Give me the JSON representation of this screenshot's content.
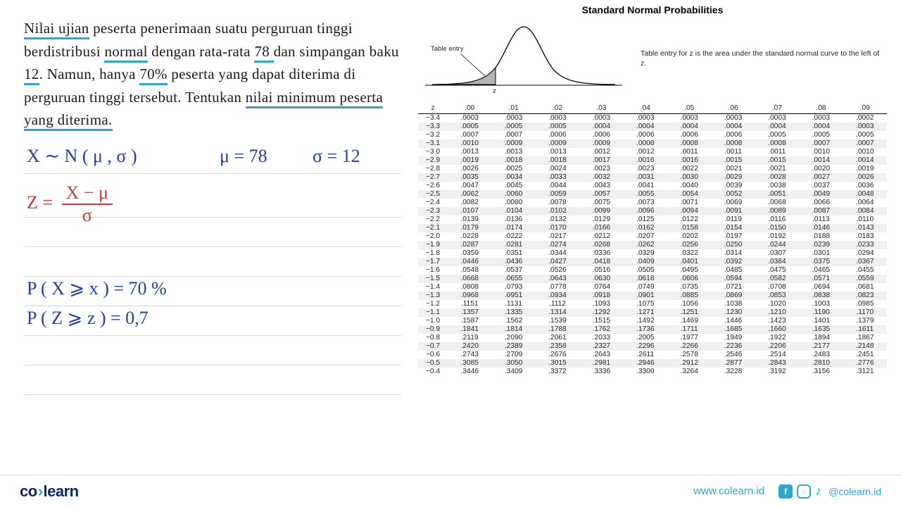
{
  "problem": {
    "text_parts": [
      "Nilai ujian",
      " peserta penerimaan suatu perguruan tinggi berdistribusi ",
      "normal",
      " dengan rata-rata ",
      "78 ",
      "dan simpangan baku ",
      "12",
      ". Namun, hanya ",
      "70%",
      " peserta yang dapat diterima di perguruan tinggi tersebut. Tentukan ",
      "nilai minimum peserta yang diterima."
    ],
    "underline_flags": [
      true,
      false,
      true,
      false,
      true,
      false,
      true,
      false,
      true,
      false,
      true
    ],
    "underline_color": "#2aa8c9",
    "font_size": 21
  },
  "handwriting": {
    "color_main": "#1f3fa6",
    "color_accent": "#c93a3a",
    "lines": {
      "dist": "X ∼ N ( μ , σ )",
      "mu": "μ = 78",
      "sigma": "σ = 12",
      "z_eq": "Z  =",
      "frac_num": "X − μ",
      "frac_den": "σ",
      "p1": "P ( X ⩾ x )  =  70 %",
      "p2": "P ( Z ⩾ z )  =  0,7"
    }
  },
  "chart": {
    "title": "Standard Normal Probabilities",
    "label_left": "Table entry",
    "label_bottom": "z",
    "note": "Table entry for z is the area under the standard normal curve to the left of z.",
    "curve_stroke": "#000000",
    "fill": "#b5b5b5"
  },
  "ztable": {
    "headers": [
      "z",
      ".00",
      ".01",
      ".02",
      ".03",
      ".04",
      ".05",
      ".06",
      ".07",
      ".08",
      ".09"
    ],
    "rows": [
      [
        "−3.4",
        ".0003",
        ".0003",
        ".0003",
        ".0003",
        ".0003",
        ".0003",
        ".0003",
        ".0003",
        ".0003",
        ".0002"
      ],
      [
        "−3.3",
        ".0005",
        ".0005",
        ".0005",
        ".0004",
        ".0004",
        ".0004",
        ".0004",
        ".0004",
        ".0004",
        ".0003"
      ],
      [
        "−3.2",
        ".0007",
        ".0007",
        ".0006",
        ".0006",
        ".0006",
        ".0006",
        ".0006",
        ".0005",
        ".0005",
        ".0005"
      ],
      [
        "−3.1",
        ".0010",
        ".0009",
        ".0009",
        ".0009",
        ".0008",
        ".0008",
        ".0008",
        ".0008",
        ".0007",
        ".0007"
      ],
      [
        "−3.0",
        ".0013",
        ".0013",
        ".0013",
        ".0012",
        ".0012",
        ".0011",
        ".0011",
        ".0011",
        ".0010",
        ".0010"
      ],
      [
        "−2.9",
        ".0019",
        ".0018",
        ".0018",
        ".0017",
        ".0016",
        ".0016",
        ".0015",
        ".0015",
        ".0014",
        ".0014"
      ],
      [
        "−2.8",
        ".0026",
        ".0025",
        ".0024",
        ".0023",
        ".0023",
        ".0022",
        ".0021",
        ".0021",
        ".0020",
        ".0019"
      ],
      [
        "−2.7",
        ".0035",
        ".0034",
        ".0033",
        ".0032",
        ".0031",
        ".0030",
        ".0029",
        ".0028",
        ".0027",
        ".0026"
      ],
      [
        "−2.6",
        ".0047",
        ".0045",
        ".0044",
        ".0043",
        ".0041",
        ".0040",
        ".0039",
        ".0038",
        ".0037",
        ".0036"
      ],
      [
        "−2.5",
        ".0062",
        ".0060",
        ".0059",
        ".0057",
        ".0055",
        ".0054",
        ".0052",
        ".0051",
        ".0049",
        ".0048"
      ],
      [
        "−2.4",
        ".0082",
        ".0080",
        ".0078",
        ".0075",
        ".0073",
        ".0071",
        ".0069",
        ".0068",
        ".0066",
        ".0064"
      ],
      [
        "−2.3",
        ".0107",
        ".0104",
        ".0102",
        ".0099",
        ".0096",
        ".0094",
        ".0091",
        ".0089",
        ".0087",
        ".0084"
      ],
      [
        "−2.2",
        ".0139",
        ".0136",
        ".0132",
        ".0129",
        ".0125",
        ".0122",
        ".0119",
        ".0116",
        ".0113",
        ".0110"
      ],
      [
        "−2.1",
        ".0179",
        ".0174",
        ".0170",
        ".0166",
        ".0162",
        ".0158",
        ".0154",
        ".0150",
        ".0146",
        ".0143"
      ],
      [
        "−2.0",
        ".0228",
        ".0222",
        ".0217",
        ".0212",
        ".0207",
        ".0202",
        ".0197",
        ".0192",
        ".0188",
        ".0183"
      ],
      [
        "−1.9",
        ".0287",
        ".0281",
        ".0274",
        ".0268",
        ".0262",
        ".0256",
        ".0250",
        ".0244",
        ".0239",
        ".0233"
      ],
      [
        "−1.8",
        ".0359",
        ".0351",
        ".0344",
        ".0336",
        ".0329",
        ".0322",
        ".0314",
        ".0307",
        ".0301",
        ".0294"
      ],
      [
        "−1.7",
        ".0446",
        ".0436",
        ".0427",
        ".0418",
        ".0409",
        ".0401",
        ".0392",
        ".0384",
        ".0375",
        ".0367"
      ],
      [
        "−1.6",
        ".0548",
        ".0537",
        ".0526",
        ".0516",
        ".0505",
        ".0495",
        ".0485",
        ".0475",
        ".0465",
        ".0455"
      ],
      [
        "−1.5",
        ".0668",
        ".0655",
        ".0643",
        ".0630",
        ".0618",
        ".0606",
        ".0594",
        ".0582",
        ".0571",
        ".0559"
      ],
      [
        "−1.4",
        ".0808",
        ".0793",
        ".0778",
        ".0764",
        ".0749",
        ".0735",
        ".0721",
        ".0708",
        ".0694",
        ".0681"
      ],
      [
        "−1.3",
        ".0968",
        ".0951",
        ".0934",
        ".0918",
        ".0901",
        ".0885",
        ".0869",
        ".0853",
        ".0838",
        ".0823"
      ],
      [
        "−1.2",
        ".1151",
        ".1131",
        ".1112",
        ".1093",
        ".1075",
        ".1056",
        ".1038",
        ".1020",
        ".1003",
        ".0985"
      ],
      [
        "−1.1",
        ".1357",
        ".1335",
        ".1314",
        ".1292",
        ".1271",
        ".1251",
        ".1230",
        ".1210",
        ".1190",
        ".1170"
      ],
      [
        "−1.0",
        ".1587",
        ".1562",
        ".1539",
        ".1515",
        ".1492",
        ".1469",
        ".1446",
        ".1423",
        ".1401",
        ".1379"
      ],
      [
        "−0.9",
        ".1841",
        ".1814",
        ".1788",
        ".1762",
        ".1736",
        ".1711",
        ".1685",
        ".1660",
        ".1635",
        ".1611"
      ],
      [
        "−0.8",
        ".2119",
        ".2090",
        ".2061",
        ".2033",
        ".2005",
        ".1977",
        ".1949",
        ".1922",
        ".1894",
        ".1867"
      ],
      [
        "−0.7",
        ".2420",
        ".2389",
        ".2358",
        ".2327",
        ".2296",
        ".2266",
        ".2236",
        ".2206",
        ".2177",
        ".2148"
      ],
      [
        "−0.6",
        ".2743",
        ".2709",
        ".2676",
        ".2643",
        ".2611",
        ".2578",
        ".2546",
        ".2514",
        ".2483",
        ".2451"
      ],
      [
        "−0.5",
        ".3085",
        ".3050",
        ".3015",
        ".2981",
        ".2946",
        ".2912",
        ".2877",
        ".2843",
        ".2810",
        ".2776"
      ],
      [
        "−0.4",
        ".3446",
        ".3409",
        ".3372",
        ".3336",
        ".3300",
        ".3264",
        ".3228",
        ".3192",
        ".3156",
        ".3121"
      ]
    ],
    "stripe_color": "#eef0f2",
    "font_size": 10.2
  },
  "footer": {
    "logo_main": "co",
    "logo_chev": "›",
    "logo_rest": "learn",
    "url": "www.colearn.id",
    "handle": "@colearn.id",
    "brand_blue": "#0a2a66",
    "brand_cyan": "#2aa8c9"
  }
}
